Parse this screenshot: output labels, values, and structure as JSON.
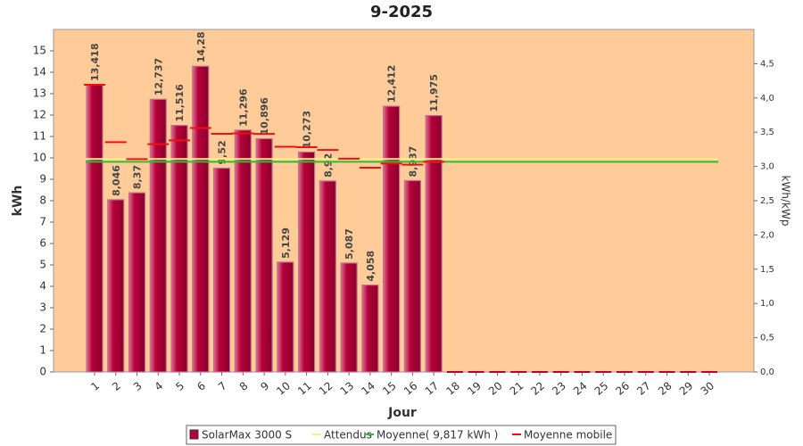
{
  "chart_data": {
    "type": "bar",
    "title": "9-2025",
    "xlabel": "Jour",
    "ylabel": "kWh",
    "y2label": "kWh/kWp",
    "categories": [
      "1",
      "2",
      "3",
      "4",
      "5",
      "6",
      "7",
      "8",
      "9",
      "10",
      "11",
      "12",
      "13",
      "14",
      "15",
      "16",
      "17",
      "18",
      "19",
      "20",
      "21",
      "22",
      "23",
      "24",
      "25",
      "26",
      "27",
      "28",
      "29",
      "30"
    ],
    "series": [
      {
        "name": "SolarMax 3000 S",
        "color": "#b5003a",
        "values": [
          13.418,
          8.046,
          8.37,
          12.737,
          11.516,
          14.28,
          9.52,
          11.296,
          10.896,
          5.129,
          10.273,
          8.92,
          5.087,
          4.058,
          12.412,
          8.937,
          11.975,
          0,
          0,
          0,
          0,
          0,
          0,
          0,
          0,
          0,
          0,
          0,
          0,
          0
        ],
        "value_labels": [
          "13,418",
          "8,046",
          "8,37",
          "12,737",
          "11,516",
          "14,28",
          "9,52",
          "11,296",
          "10,896",
          "5,129",
          "10,273",
          "8,92",
          "5,087",
          "4,058",
          "12,412",
          "8,937",
          "11,975",
          null,
          null,
          null,
          null,
          null,
          null,
          null,
          null,
          null,
          null,
          null,
          null,
          null
        ]
      },
      {
        "name": "Attendus",
        "color": "#ffee88",
        "value": 9.95
      },
      {
        "name": "Moyenne( 9,817 kWh )",
        "color": "#33bb33",
        "value": 9.817
      },
      {
        "name": "Moyenne mobile",
        "color": "#ee1111",
        "values": [
          13.418,
          10.732,
          9.945,
          10.643,
          10.817,
          11.394,
          11.126,
          11.147,
          11.12,
          10.521,
          10.5,
          10.368,
          9.962,
          9.54,
          9.732,
          9.682,
          9.817,
          null,
          null,
          null,
          null,
          null,
          null,
          null,
          null,
          null,
          null,
          null,
          null,
          null
        ]
      }
    ],
    "ylim": [
      0,
      16
    ],
    "yticks": [
      0,
      1,
      2,
      3,
      4,
      5,
      6,
      7,
      8,
      9,
      10,
      11,
      12,
      13,
      14,
      15
    ],
    "y2lim": [
      0,
      5
    ],
    "y2ticks": [
      {
        "value": 0,
        "label": "0,0"
      },
      {
        "value": 0.5,
        "label": "0,5"
      },
      {
        "value": 1,
        "label": "1,0"
      },
      {
        "value": 1.5,
        "label": "1,5"
      },
      {
        "value": 2,
        "label": "2,0"
      },
      {
        "value": 2.5,
        "label": "2,5"
      },
      {
        "value": 3,
        "label": "3,0"
      },
      {
        "value": 3.5,
        "label": "3,5"
      },
      {
        "value": 4,
        "label": "4,0"
      },
      {
        "value": 4.5,
        "label": "4,5"
      }
    ],
    "legend": "bottom"
  }
}
